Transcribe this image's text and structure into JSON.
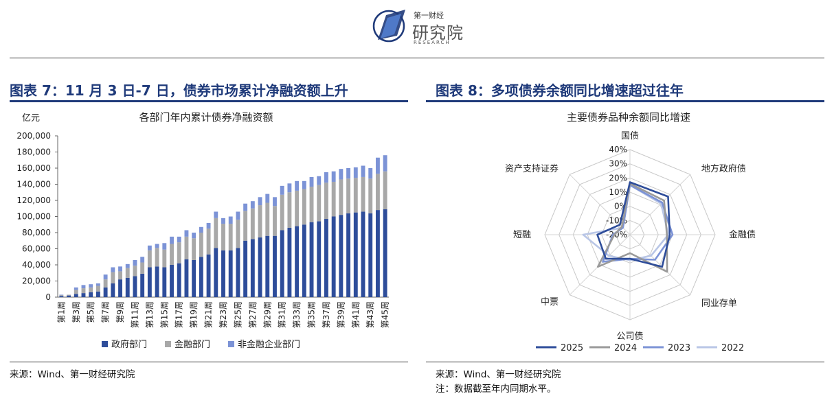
{
  "header": {
    "logo_brand_small": "第一财经",
    "logo_brand_big": "研究院",
    "logo_sub": "RESEARCH"
  },
  "left": {
    "figure_title": "图表 7：11 月 3 日-7 日，债券市场累计净融资额上升",
    "source": "来源：Wind、第一财经研究院"
  },
  "right": {
    "figure_title": "图表 8：多项债券余额同比增速超过往年",
    "source": "来源：Wind、第一财经研究院",
    "note": "注：数据截至年内同期水平。"
  },
  "colors": {
    "navy": "#1f3a7a",
    "gov": "#2e4d9a",
    "fin": "#a8a8a8",
    "nonfin": "#7c93d6",
    "r2025": "#2e4d9a",
    "r2024": "#9a9a9a",
    "r2023": "#7c93d6",
    "r2022": "#b9c6e6"
  },
  "chart_data": [
    {
      "type": "bar",
      "stacked": true,
      "title": "各部门年内累计债券净融资额",
      "ylabel": "亿元",
      "ylim": [
        0,
        200000
      ],
      "yticks": [
        0,
        20000,
        40000,
        60000,
        80000,
        100000,
        120000,
        140000,
        160000,
        180000,
        200000
      ],
      "ytick_labels": [
        "0",
        "20,000",
        "40,000",
        "60,000",
        "80,000",
        "100,000",
        "120,000",
        "140,000",
        "160,000",
        "180,000",
        "200,000"
      ],
      "categories": [
        "第1周",
        "第2周",
        "第3周",
        "第4周",
        "第5周",
        "第6周",
        "第7周",
        "第8周",
        "第9周",
        "第10周",
        "第11周",
        "第12周",
        "第13周",
        "第14周",
        "第15周",
        "第16周",
        "第17周",
        "第18周",
        "第19周",
        "第20周",
        "第21周",
        "第22周",
        "第23周",
        "第24周",
        "第25周",
        "第26周",
        "第27周",
        "第28周",
        "第29周",
        "第30周",
        "第31周",
        "第32周",
        "第33周",
        "第34周",
        "第35周",
        "第36周",
        "第37周",
        "第38周",
        "第39周",
        "第40周",
        "第41周",
        "第42周",
        "第43周",
        "第44周",
        "第45周"
      ],
      "xtick_labels": [
        "第1周",
        "第3周",
        "第5周",
        "第7周",
        "第9周",
        "第11周",
        "第13周",
        "第15周",
        "第17周",
        "第19周",
        "第21周",
        "第23周",
        "第25周",
        "第27周",
        "第29周",
        "第31周",
        "第33周",
        "第35周",
        "第37周",
        "第39周",
        "第41周",
        "第43周",
        "第45周"
      ],
      "series": [
        {
          "name": "政府部门",
          "values": [
            1500,
            2000,
            4000,
            5000,
            6000,
            7000,
            12000,
            17000,
            22000,
            24000,
            26000,
            29000,
            37000,
            38000,
            37000,
            40000,
            42000,
            47000,
            46000,
            50000,
            53000,
            61000,
            58000,
            58000,
            61000,
            70000,
            72000,
            74000,
            76000,
            76000,
            83000,
            86000,
            88000,
            90000,
            93000,
            94000,
            97000,
            100000,
            102000,
            104000,
            105000,
            106000,
            104000,
            108000,
            109000
          ]
        },
        {
          "name": "金融部门",
          "values": [
            1000,
            1000,
            5000,
            6000,
            6000,
            7000,
            10000,
            14000,
            10000,
            12000,
            13000,
            14000,
            21000,
            23000,
            22000,
            26000,
            26000,
            28000,
            27000,
            30000,
            32000,
            37000,
            33000,
            33000,
            35000,
            37000,
            38000,
            40000,
            41000,
            37000,
            44000,
            44000,
            44000,
            44000,
            44000,
            45000,
            45000,
            43000,
            44000,
            43000,
            43000,
            43000,
            43000,
            45000,
            47000
          ]
        },
        {
          "name": "非金融企业部门",
          "values": [
            500,
            0,
            3000,
            4000,
            4000,
            3000,
            6000,
            6000,
            6000,
            5000,
            7000,
            7000,
            6000,
            5000,
            8000,
            9000,
            7000,
            8000,
            7000,
            7000,
            7000,
            8000,
            7000,
            9000,
            10000,
            9000,
            9000,
            10000,
            11000,
            11000,
            11000,
            11000,
            12000,
            10000,
            12000,
            11000,
            13000,
            13000,
            13000,
            13000,
            13000,
            14000,
            13000,
            20000,
            20000
          ]
        }
      ]
    },
    {
      "type": "radar",
      "title": "主要债券品种余额同比增速",
      "rlim": [
        -20,
        40
      ],
      "rticks": [
        "40%",
        "30%",
        "20%",
        "10%",
        "0%",
        "-10%",
        "-20%"
      ],
      "categories": [
        "国债",
        "地方政府债",
        "金融债",
        "同业存单",
        "公司债",
        "中票",
        "短融",
        "资产支持证券"
      ],
      "series": [
        {
          "name": "2025",
          "values": [
            17,
            18,
            8,
            12,
            -3,
            4,
            3,
            -10
          ]
        },
        {
          "name": "2024",
          "values": [
            16,
            14,
            6,
            17,
            -7,
            12,
            -9,
            -12
          ]
        },
        {
          "name": "2023",
          "values": [
            15,
            12,
            10,
            5,
            -3,
            7,
            -8,
            -13
          ]
        },
        {
          "name": "2022",
          "values": [
            15,
            11,
            7,
            1,
            -2,
            1,
            13,
            -13
          ]
        }
      ]
    }
  ]
}
